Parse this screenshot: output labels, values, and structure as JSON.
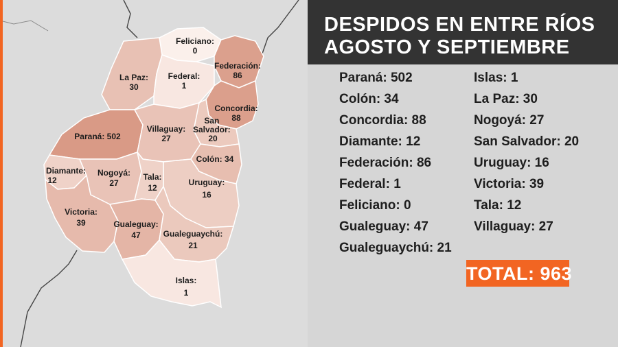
{
  "title": {
    "line1": "DESPIDOS EN ENTRE RÍOS",
    "line2": "AGOSTO Y SEPTIEMBRE"
  },
  "stats_left": [
    "Paraná: 502",
    "Colón: 34",
    "Concordia: 88",
    "Diamante: 12",
    "Federación: 86",
    "Federal: 1",
    "Feliciano: 0",
    "Gualeguay: 47",
    "Gualeguaychú: 21"
  ],
  "stats_right": [
    "Islas: 1",
    "La Paz: 30",
    "Nogoyá: 27",
    "San Salvador: 20",
    "Uruguay: 16",
    "Victoria: 39",
    "Tala: 12",
    "Villaguay: 27"
  ],
  "total": "TOTAL: 963",
  "map": {
    "departments": [
      {
        "name": "Feliciano:",
        "value": "0",
        "count": 0
      },
      {
        "name": "Federación:",
        "value": "86",
        "count": 86
      },
      {
        "name": "La Paz:",
        "value": "30",
        "count": 30
      },
      {
        "name": "Federal:",
        "value": "1",
        "count": 1
      },
      {
        "name": "Concordia:",
        "value": "88",
        "count": 88
      },
      {
        "name": "San Salvador:",
        "value": "20",
        "count": 20
      },
      {
        "name": "Paraná: 502",
        "value": "",
        "count": 502
      },
      {
        "name": "Villaguay:",
        "value": "27",
        "count": 27
      },
      {
        "name": "Colón: 34",
        "value": "",
        "count": 34
      },
      {
        "name": "Diamante:",
        "value": "12",
        "count": 12
      },
      {
        "name": "Nogoyá:",
        "value": "27",
        "count": 27
      },
      {
        "name": "Tala:",
        "value": "12",
        "count": 12
      },
      {
        "name": "Uruguay:",
        "value": "16",
        "count": 16
      },
      {
        "name": "Victoria:",
        "value": "39",
        "count": 39
      },
      {
        "name": "Gualeguay:",
        "value": "47",
        "count": 47
      },
      {
        "name": "Gualeguaychú:",
        "value": "21",
        "count": 21
      },
      {
        "name": "Islas:",
        "value": "1",
        "count": 1
      }
    ]
  },
  "colors": {
    "accent": "#f26522",
    "title_bg": "#333333",
    "panel_bg": "#d6d6d6",
    "map_bg": "#dcdcdc",
    "scale_low": "#fbf0eb",
    "scale_high": "#d99a86"
  }
}
